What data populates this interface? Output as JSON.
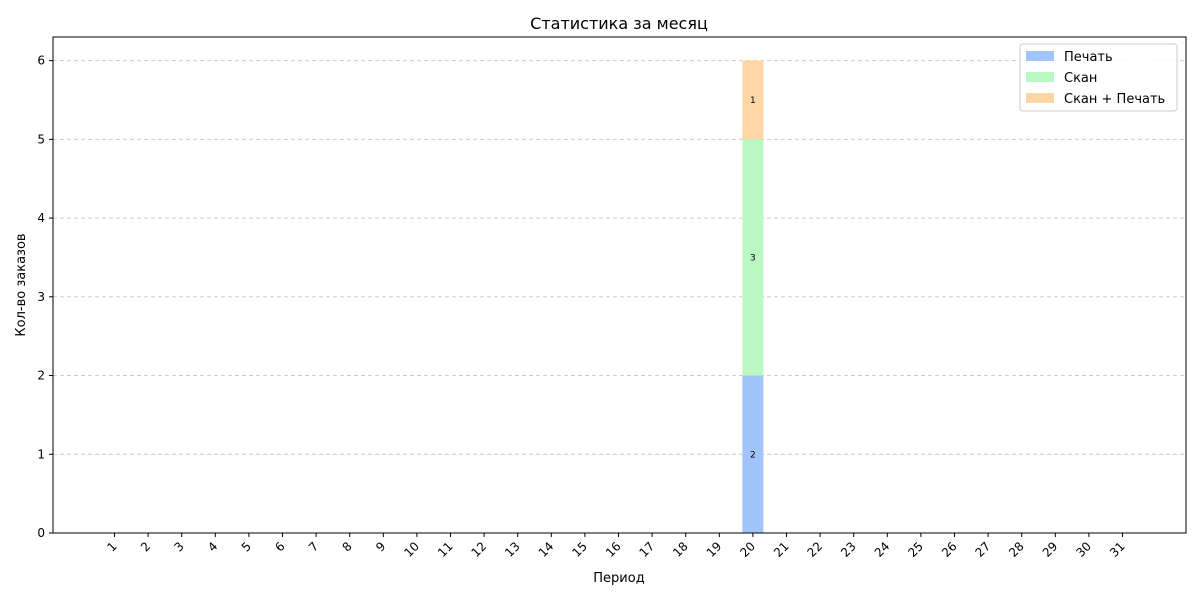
{
  "chart_data": {
    "type": "bar",
    "stacked": true,
    "title": "Статистика за месяц",
    "xlabel": "Период",
    "ylabel": "Кол-во заказов",
    "ylim": [
      0,
      6.3
    ],
    "yticks": [
      0,
      1,
      2,
      3,
      4,
      5,
      6
    ],
    "grid": "y-dashed",
    "legend": "top-right",
    "categories": [
      "1",
      "2",
      "3",
      "4",
      "5",
      "6",
      "7",
      "8",
      "9",
      "10",
      "11",
      "12",
      "13",
      "14",
      "15",
      "16",
      "17",
      "18",
      "19",
      "20",
      "21",
      "22",
      "23",
      "24",
      "25",
      "26",
      "27",
      "28",
      "29",
      "30",
      "31"
    ],
    "series": [
      {
        "name": "Печать",
        "color": "#a1c4fd",
        "values": [
          0,
          0,
          0,
          0,
          0,
          0,
          0,
          0,
          0,
          0,
          0,
          0,
          0,
          0,
          0,
          0,
          0,
          0,
          0,
          2,
          0,
          0,
          0,
          0,
          0,
          0,
          0,
          0,
          0,
          0,
          0
        ]
      },
      {
        "name": "Скан",
        "color": "#baf8c4",
        "values": [
          0,
          0,
          0,
          0,
          0,
          0,
          0,
          0,
          0,
          0,
          0,
          0,
          0,
          0,
          0,
          0,
          0,
          0,
          0,
          3,
          0,
          0,
          0,
          0,
          0,
          0,
          0,
          0,
          0,
          0,
          0
        ]
      },
      {
        "name": "Скан + Печать",
        "color": "#ffd6a5",
        "values": [
          0,
          0,
          0,
          0,
          0,
          0,
          0,
          0,
          0,
          0,
          0,
          0,
          0,
          0,
          0,
          0,
          0,
          0,
          0,
          1,
          0,
          0,
          0,
          0,
          0,
          0,
          0,
          0,
          0,
          0,
          0
        ]
      }
    ]
  }
}
